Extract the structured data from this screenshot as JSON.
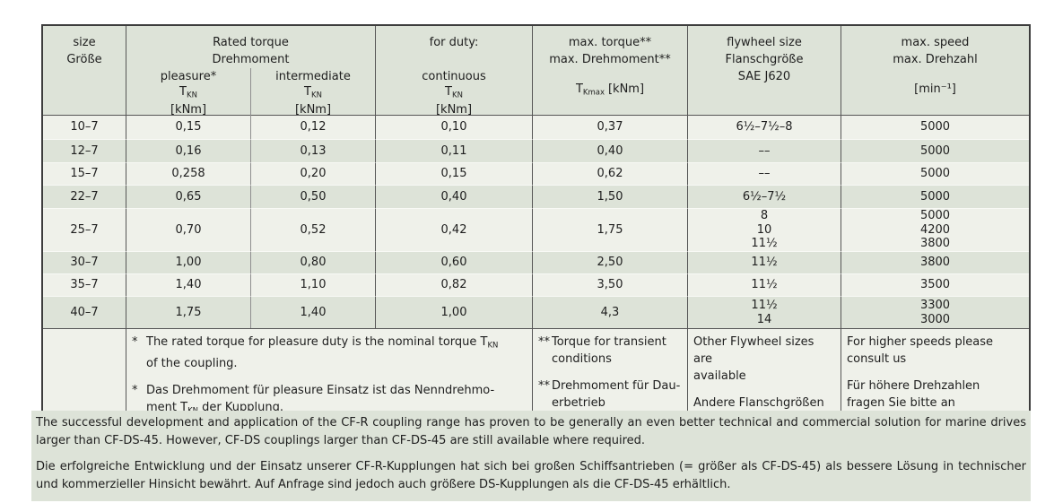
{
  "colors": {
    "page-bg": "#ffffff",
    "row-light": "#eff1ea",
    "row-dark": "#dde3d8",
    "header-bg": "#dde3d8",
    "para-bg": "#dde3d8",
    "border-dark": "#3d3d3d",
    "border-mid": "#565656",
    "border-light": "#8f8f8f",
    "row-sep": "#f8f9f5",
    "text": "#1e1e1e"
  },
  "table": {
    "header": {
      "size": "size\nGröße",
      "rated_torque": "Rated torque\nDrehmoment",
      "pleasure": {
        "label": "pleasure*",
        "symbol": "T",
        "symbol_sub": "KN",
        "unit": "[kNm]"
      },
      "intermediate": {
        "label": "intermediate",
        "symbol": "T",
        "symbol_sub": "KN",
        "unit": "[kNm]"
      },
      "for_duty": {
        "label": "for duty:",
        "sub_label": "continuous",
        "symbol": "T",
        "symbol_sub": "KN",
        "unit": "[kNm]"
      },
      "max_torque": {
        "label": "max. torque**\nmax. Drehmoment**",
        "symbol": "T",
        "symbol_sub": "Kmax",
        "unit": "[kNm]"
      },
      "flywheel": {
        "label": "flywheel size\nFlanschgröße\nSAE J620"
      },
      "max_speed": {
        "label": "max. speed\nmax. Drehzahl",
        "unit": "[min⁻¹]"
      }
    },
    "rows": [
      {
        "size": "10–7",
        "pleasure": "0,15",
        "intermediate": "0,12",
        "continuous": "0,10",
        "max_torque": "0,37",
        "flywheel": "6½–7½–8",
        "max_speed": "5000"
      },
      {
        "size": "12–7",
        "pleasure": "0,16",
        "intermediate": "0,13",
        "continuous": "0,11",
        "max_torque": "0,40",
        "flywheel": "––",
        "max_speed": "5000"
      },
      {
        "size": "15–7",
        "pleasure": "0,258",
        "intermediate": "0,20",
        "continuous": "0,15",
        "max_torque": "0,62",
        "flywheel": "––",
        "max_speed": "5000"
      },
      {
        "size": "22–7",
        "pleasure": "0,65",
        "intermediate": "0,50",
        "continuous": "0,40",
        "max_torque": "1,50",
        "flywheel": "6½–7½",
        "max_speed": "5000"
      },
      {
        "size": "25–7",
        "pleasure": "0,70",
        "intermediate": "0,52",
        "continuous": "0,42",
        "max_torque": "1,75",
        "flywheel": "8\n10\n11½",
        "max_speed": "5000\n4200\n3800"
      },
      {
        "size": "30–7",
        "pleasure": "1,00",
        "intermediate": "0,80",
        "continuous": "0,60",
        "max_torque": "2,50",
        "flywheel": "11½",
        "max_speed": "3800"
      },
      {
        "size": "35–7",
        "pleasure": "1,40",
        "intermediate": "1,10",
        "continuous": "0,82",
        "max_torque": "3,50",
        "flywheel": "11½",
        "max_speed": "3500"
      },
      {
        "size": "40–7",
        "pleasure": "1,75",
        "intermediate": "1,40",
        "continuous": "1,00",
        "max_torque": "4,3",
        "flywheel": "11½\n14",
        "max_speed": "3300\n3000"
      }
    ],
    "footnotes": {
      "rated": [
        {
          "marker": "*",
          "pre": "The rated torque for pleasure duty is the nominal torque T",
          "sub": "KN",
          "post": "\nof the coupling."
        },
        {
          "marker": "*",
          "pre": "Das Drehmoment für pleasure Einsatz ist das Nenndrehmo-\nment T",
          "sub": "KN",
          "post": " der Kupplung."
        }
      ],
      "max_torque": [
        {
          "marker": "**",
          "text": "Torque for transient\nconditions"
        },
        {
          "marker": "**",
          "text": "Drehmoment für Dau-\nerbetrieb"
        }
      ],
      "flywheel": [
        "Other Flywheel sizes are\navailable",
        "Andere Flanschgrößen\nsind verfügbar"
      ],
      "max_speed": [
        "For higher speeds please\nconsult us",
        "Für höhere Drehzahlen\nfragen Sie bitte an"
      ]
    }
  },
  "paragraphs": {
    "en": "The successful development and application of the CF-R coupling range has proven to be generally an even better technical and commercial solution for marine drives larger than CF-DS-45. However, CF-DS couplings larger than CF-DS-45 are still available where required.",
    "de": "Die erfolgreiche Entwicklung und der Einsatz unserer CF-R-Kupplungen hat sich bei großen Schiffsantrieben (= größer als CF-DS-45) als bessere Lösung in technischer und kommerzieller Hinsicht bewährt. Auf Anfrage sind jedoch auch größere DS-Kupplungen als die CF-DS-45 erhältlich."
  }
}
